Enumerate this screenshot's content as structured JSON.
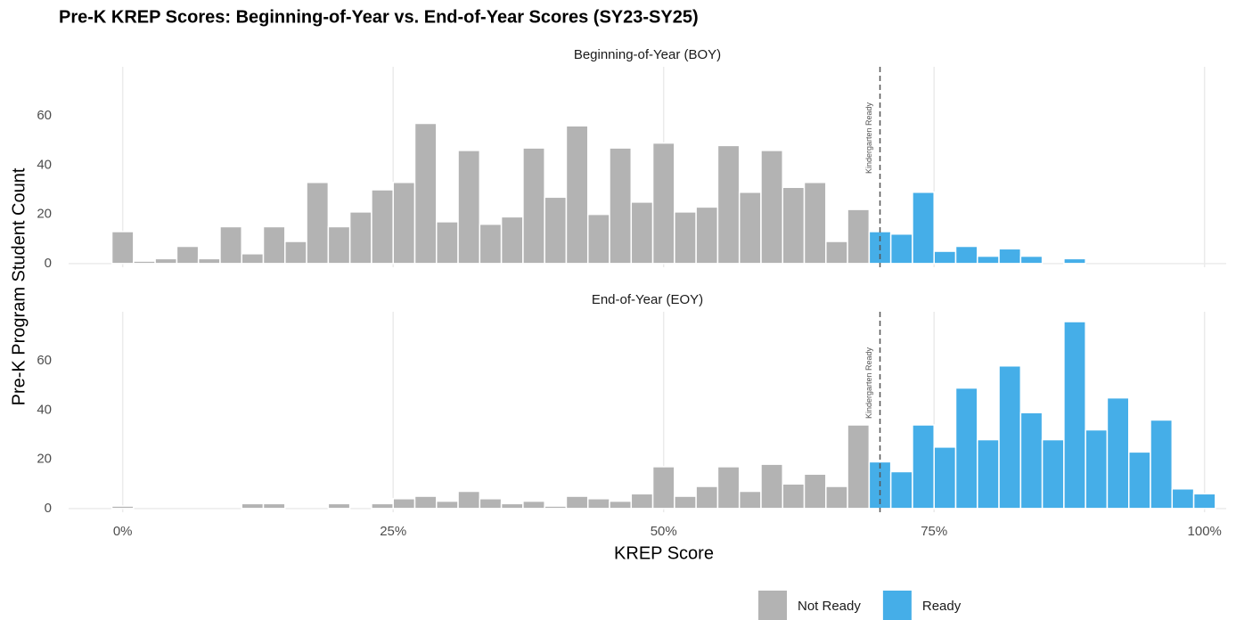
{
  "chart_data": {
    "type": "histogram",
    "title": "Pre-K KREP Scores: Beginning-of-Year vs. End-of-Year Scores (SY23-SY25)",
    "x_label": "KREP Score",
    "y_label": "Pre-K Program Student Count",
    "xlim": [
      -5,
      102
    ],
    "xticks": [
      {
        "value": 0,
        "label": "0%"
      },
      {
        "value": 25,
        "label": "25%"
      },
      {
        "value": 50,
        "label": "50%"
      },
      {
        "value": 75,
        "label": "75%"
      },
      {
        "value": 100,
        "label": "100%"
      }
    ],
    "grid": "x",
    "threshold": {
      "value": 70,
      "label": "Kindergarten Ready"
    },
    "legend_position": "bottom",
    "bins": [
      -1,
      1,
      3,
      5,
      7,
      9,
      11,
      13,
      15,
      17,
      19,
      21,
      23,
      25,
      27,
      29,
      31,
      33,
      35,
      37,
      39,
      41,
      43,
      45,
      47,
      49,
      51,
      53,
      55,
      57,
      59,
      61,
      63,
      65,
      67,
      69,
      71,
      73,
      75,
      77,
      79,
      81,
      83,
      85,
      87,
      89,
      91,
      93,
      95,
      97,
      99,
      101
    ],
    "panels": [
      {
        "subtitle": "Beginning-of-Year (BOY)",
        "ylim": [
          -1.5,
          80
        ],
        "yticks": [
          0,
          20,
          40,
          60
        ],
        "series": [
          {
            "name": "Not Ready",
            "color": "#b3b3b3",
            "values": [
              13,
              1,
              2,
              7,
              2,
              15,
              4,
              15,
              9,
              33,
              15,
              21,
              30,
              33,
              57,
              17,
              46,
              16,
              19,
              47,
              27,
              56,
              20,
              47,
              25,
              49,
              21,
              23,
              48,
              29,
              46,
              31,
              33,
              9,
              22,
              null,
              null,
              null,
              null,
              null,
              null,
              null,
              null,
              null,
              null,
              null,
              null,
              null,
              null,
              null,
              null
            ]
          },
          {
            "name": "Ready",
            "color": "#45aee8",
            "values": [
              null,
              null,
              null,
              null,
              null,
              null,
              null,
              null,
              null,
              null,
              null,
              null,
              null,
              null,
              null,
              null,
              null,
              null,
              null,
              null,
              null,
              null,
              null,
              null,
              null,
              null,
              null,
              null,
              null,
              null,
              null,
              null,
              null,
              null,
              null,
              13,
              12,
              29,
              5,
              7,
              3,
              6,
              3,
              0,
              2,
              0,
              0,
              0,
              0,
              0,
              0
            ]
          }
        ]
      },
      {
        "subtitle": "End-of-Year (EOY)",
        "ylim": [
          -1.5,
          80
        ],
        "yticks": [
          0,
          20,
          40,
          60
        ],
        "series": [
          {
            "name": "Not Ready",
            "color": "#b3b3b3",
            "values": [
              1,
              0,
              0,
              0,
              0,
              0,
              2,
              2,
              0,
              0,
              2,
              0,
              2,
              4,
              5,
              3,
              7,
              4,
              2,
              3,
              1,
              5,
              4,
              3,
              6,
              17,
              5,
              9,
              17,
              7,
              18,
              10,
              14,
              9,
              34,
              null,
              null,
              null,
              null,
              null,
              null,
              null,
              null,
              null,
              null,
              null,
              null,
              null,
              null,
              null,
              null
            ]
          },
          {
            "name": "Ready",
            "color": "#45aee8",
            "values": [
              null,
              null,
              null,
              null,
              null,
              null,
              null,
              null,
              null,
              null,
              null,
              null,
              null,
              null,
              null,
              null,
              null,
              null,
              null,
              null,
              null,
              null,
              null,
              null,
              null,
              null,
              null,
              null,
              null,
              null,
              null,
              null,
              null,
              null,
              null,
              19,
              15,
              34,
              25,
              49,
              28,
              58,
              39,
              28,
              76,
              32,
              45,
              23,
              36,
              8,
              6
            ]
          }
        ]
      }
    ]
  }
}
